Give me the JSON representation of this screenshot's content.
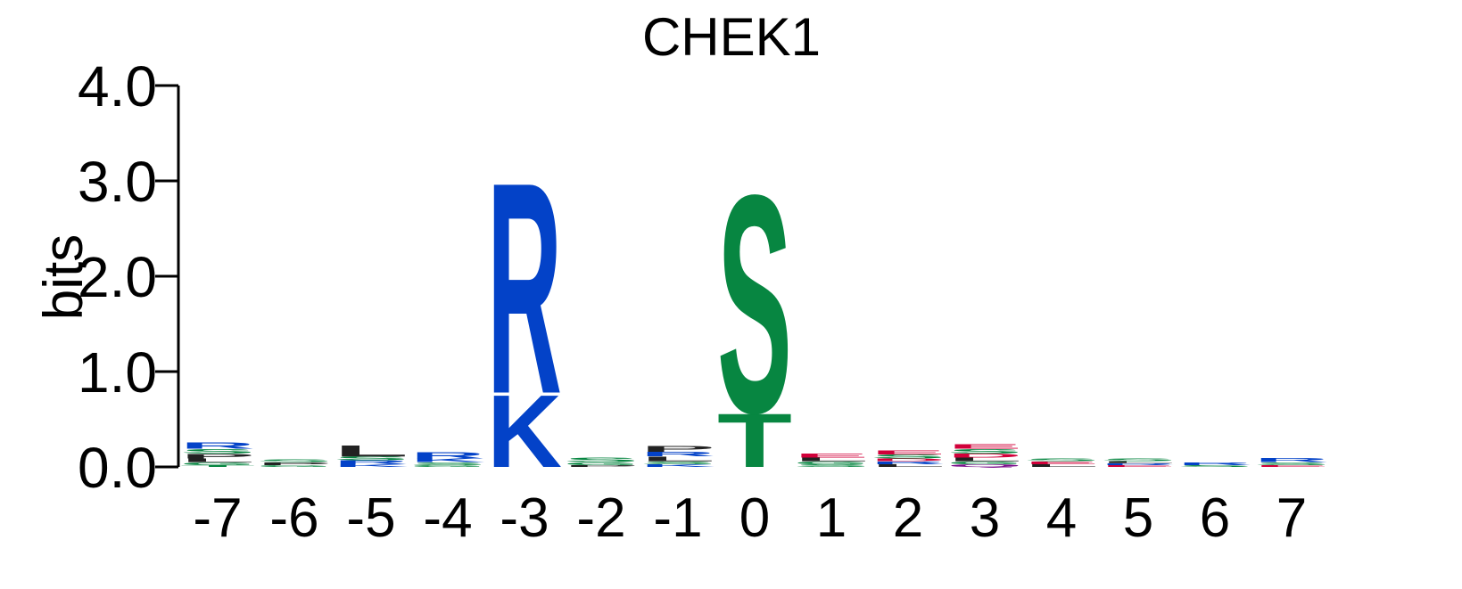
{
  "chart_data": {
    "type": "sequence-logo",
    "title": "CHEK1",
    "ylabel": "bits",
    "ylim": [
      0,
      4
    ],
    "yticks": [
      "0.0",
      "1.0",
      "2.0",
      "3.0",
      "4.0"
    ],
    "positions": [
      "-7",
      "-6",
      "-5",
      "-4",
      "-3",
      "-2",
      "-1",
      "0",
      "1",
      "2",
      "3",
      "4",
      "5",
      "6",
      "7"
    ],
    "colors": {
      "basic": "#0342c8",
      "polar": "#078641",
      "hydrophobic": "#222222",
      "acidic": "#d1003a",
      "neutral": "#7a0c8a"
    },
    "stacks": [
      [
        {
          "letter": "R",
          "bits": 0.07,
          "color": "basic"
        },
        {
          "letter": "P",
          "bits": 0.05,
          "color": "hydrophobic"
        },
        {
          "letter": "L",
          "bits": 0.04,
          "color": "hydrophobic"
        },
        {
          "letter": "S",
          "bits": 0.05,
          "color": "polar"
        },
        {
          "letter": "G",
          "bits": 0.03,
          "color": "polar"
        },
        {
          "letter": "T",
          "bits": 0.02,
          "color": "polar"
        }
      ],
      [
        {
          "letter": "P",
          "bits": 0.03,
          "color": "hydrophobic"
        },
        {
          "letter": "S",
          "bits": 0.03,
          "color": "polar"
        },
        {
          "letter": "G",
          "bits": 0.02,
          "color": "polar"
        }
      ],
      [
        {
          "letter": "L",
          "bits": 0.12,
          "color": "hydrophobic"
        },
        {
          "letter": "R",
          "bits": 0.04,
          "color": "basic"
        },
        {
          "letter": "S",
          "bits": 0.04,
          "color": "polar"
        },
        {
          "letter": "K",
          "bits": 0.03,
          "color": "basic"
        }
      ],
      [
        {
          "letter": "R",
          "bits": 0.07,
          "color": "basic"
        },
        {
          "letter": "K",
          "bits": 0.04,
          "color": "basic"
        },
        {
          "letter": "S",
          "bits": 0.03,
          "color": "polar"
        },
        {
          "letter": "G",
          "bits": 0.02,
          "color": "polar"
        }
      ],
      [
        {
          "letter": "R",
          "bits": 2.28,
          "color": "basic"
        },
        {
          "letter": "K",
          "bits": 0.78,
          "color": "basic"
        }
      ],
      [
        {
          "letter": "S",
          "bits": 0.05,
          "color": "polar"
        },
        {
          "letter": "G",
          "bits": 0.03,
          "color": "polar"
        },
        {
          "letter": "P",
          "bits": 0.02,
          "color": "hydrophobic"
        }
      ],
      [
        {
          "letter": "P",
          "bits": 0.06,
          "color": "hydrophobic"
        },
        {
          "letter": "L",
          "bits": 0.05,
          "color": "hydrophobic"
        },
        {
          "letter": "R",
          "bits": 0.05,
          "color": "basic"
        },
        {
          "letter": "K",
          "bits": 0.03,
          "color": "basic"
        },
        {
          "letter": "S",
          "bits": 0.03,
          "color": "polar"
        }
      ],
      [
        {
          "letter": "S",
          "bits": 2.35,
          "color": "polar"
        },
        {
          "letter": "T",
          "bits": 0.58,
          "color": "polar"
        }
      ],
      [
        {
          "letter": "L",
          "bits": 0.04,
          "color": "hydrophobic"
        },
        {
          "letter": "E",
          "bits": 0.04,
          "color": "acidic"
        },
        {
          "letter": "S",
          "bits": 0.03,
          "color": "polar"
        },
        {
          "letter": "G",
          "bits": 0.03,
          "color": "polar"
        }
      ],
      [
        {
          "letter": "S",
          "bits": 0.04,
          "color": "polar"
        },
        {
          "letter": "E",
          "bits": 0.04,
          "color": "acidic"
        },
        {
          "letter": "L",
          "bits": 0.03,
          "color": "hydrophobic"
        },
        {
          "letter": "R",
          "bits": 0.03,
          "color": "basic"
        },
        {
          "letter": "D",
          "bits": 0.03,
          "color": "acidic"
        }
      ],
      [
        {
          "letter": "S",
          "bits": 0.05,
          "color": "polar"
        },
        {
          "letter": "L",
          "bits": 0.04,
          "color": "hydrophobic"
        },
        {
          "letter": "E",
          "bits": 0.05,
          "color": "acidic"
        },
        {
          "letter": "D",
          "bits": 0.04,
          "color": "acidic"
        },
        {
          "letter": "Q",
          "bits": 0.03,
          "color": "neutral"
        },
        {
          "letter": "G",
          "bits": 0.03,
          "color": "polar"
        }
      ],
      [
        {
          "letter": "L",
          "bits": 0.03,
          "color": "hydrophobic"
        },
        {
          "letter": "E",
          "bits": 0.03,
          "color": "acidic"
        },
        {
          "letter": "S",
          "bits": 0.03,
          "color": "polar"
        }
      ],
      [
        {
          "letter": "S",
          "bits": 0.03,
          "color": "polar"
        },
        {
          "letter": "E",
          "bits": 0.02,
          "color": "acidic"
        },
        {
          "letter": "R",
          "bits": 0.02,
          "color": "basic"
        },
        {
          "letter": "L",
          "bits": 0.02,
          "color": "hydrophobic"
        }
      ],
      [
        {
          "letter": "R",
          "bits": 0.03,
          "color": "basic"
        },
        {
          "letter": "S",
          "bits": 0.02,
          "color": "polar"
        }
      ],
      [
        {
          "letter": "R",
          "bits": 0.04,
          "color": "basic"
        },
        {
          "letter": "S",
          "bits": 0.03,
          "color": "polar"
        },
        {
          "letter": "E",
          "bits": 0.02,
          "color": "acidic"
        }
      ]
    ]
  }
}
